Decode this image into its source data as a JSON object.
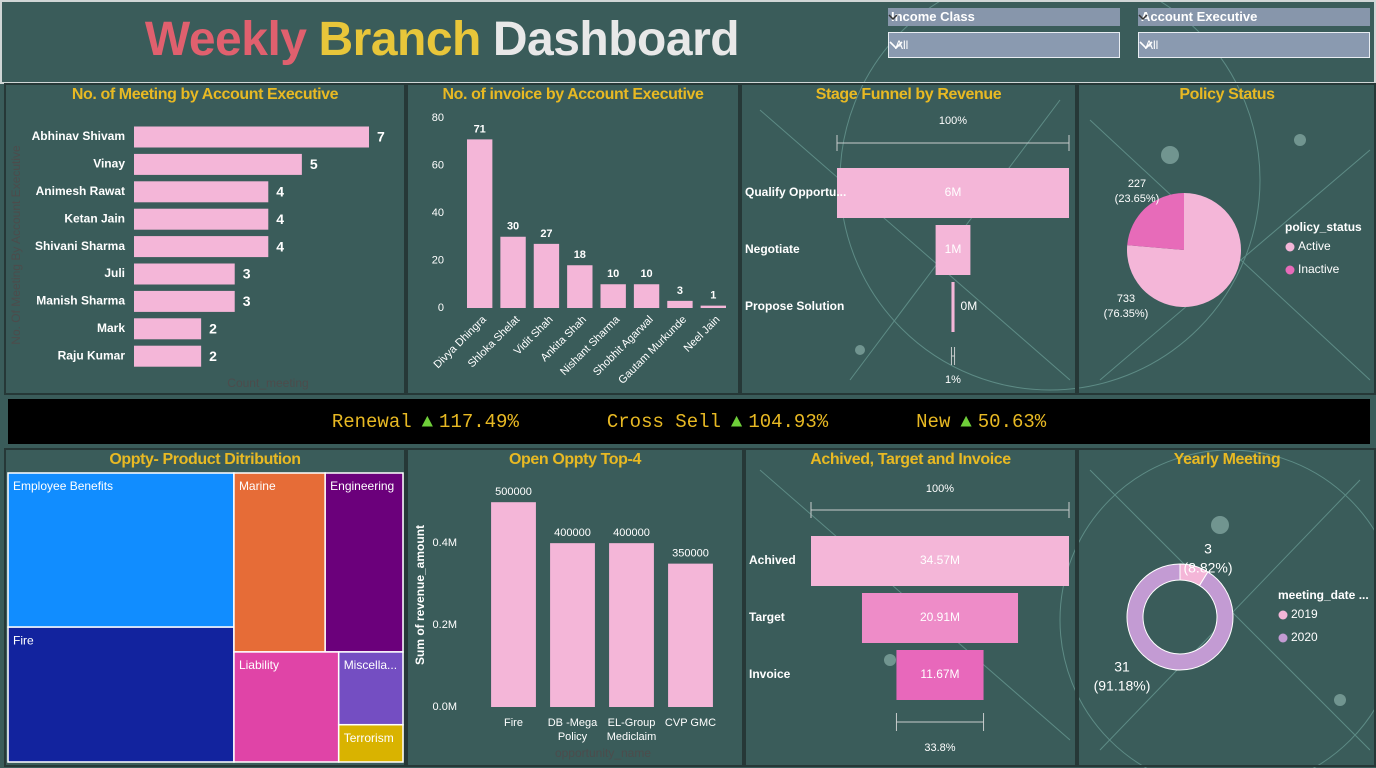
{
  "header": {
    "title_parts": [
      "Weekly",
      "Branch",
      "Dashboard"
    ]
  },
  "slicers": [
    {
      "label": "Income Class",
      "value": "All"
    },
    {
      "label": "Account Executive",
      "value": "All"
    }
  ],
  "ticker": [
    {
      "label": "Renewal",
      "arrow": "▲",
      "change": "117.49%"
    },
    {
      "label": "Cross Sell",
      "arrow": "▲",
      "change": "104.93%"
    },
    {
      "label": "New",
      "arrow": "▲",
      "change": "50.63%"
    }
  ],
  "chart_data": [
    {
      "type": "hbar",
      "title": "No. of Meeting by Account Executive",
      "categories": [
        "Abhinav Shivam",
        "Vinay",
        "Animesh Rawat",
        "Ketan Jain",
        "Shivani Sharma",
        "Juli",
        "Manish Sharma",
        "Mark",
        "Raju Kumar"
      ],
      "values": [
        7,
        5,
        4,
        4,
        4,
        3,
        3,
        2,
        2
      ],
      "color": "#f4b6d8",
      "x_label": "Count_meeting",
      "y_label": "No. Of Meeting By Account Executive"
    },
    {
      "type": "bar",
      "title": "No. of invoice by Account Executive",
      "categories": [
        "Divya Dhingra",
        "Shloka Shelat",
        "Vidit Shah",
        "Ankita Shah",
        "Nishant Sharma",
        "Shobhit Agarwal",
        "Gautam Murkunde",
        "Neel Jain"
      ],
      "values": [
        71,
        30,
        27,
        18,
        10,
        10,
        3,
        1
      ],
      "color": "#f4b6d8",
      "ylim": [
        0,
        80
      ],
      "yticks": [
        0,
        20,
        40,
        60,
        80
      ],
      "grid": false
    },
    {
      "type": "funnel",
      "title": "Stage Funnel by Revenue",
      "categories": [
        "Qualify Opportu...",
        "Negotiate",
        "Propose Solution"
      ],
      "values": [
        6,
        0.9,
        0.08
      ],
      "value_labels": [
        "6M",
        "1M",
        "0M"
      ],
      "colors": [
        "#f4b6d8",
        "#f4b6d8",
        "#f4b6d8"
      ],
      "top_label": "100%",
      "bottom_label": "1%"
    },
    {
      "type": "pie",
      "title": "Policy Status",
      "categories": [
        "Active",
        "Inactive"
      ],
      "values": [
        733,
        227
      ],
      "percent_labels": [
        "(76.35%)",
        "(23.65%)"
      ],
      "colors": [
        "#f4b6d8",
        "#e76bb9"
      ],
      "legend_title": "policy_status"
    },
    {
      "type": "treemap",
      "title": "Oppty- Product Ditribution",
      "categories": [
        "Employee Benefits",
        "Fire",
        "Marine",
        "Engineering",
        "Liability",
        "Miscella...",
        "Terrorism"
      ],
      "values": [
        30.5,
        26.7,
        14.3,
        12.2,
        10.1,
        4.1,
        2.1
      ],
      "colors": [
        "#118dff",
        "#12239e",
        "#e66c37",
        "#6b007b",
        "#e044a7",
        "#744ec2",
        "#d9b300"
      ]
    },
    {
      "type": "bar",
      "title": "Open Oppty Top-4",
      "categories": [
        "Fire",
        "DB -Mega Policy",
        "EL-Group Mediclaim",
        "CVP GMC"
      ],
      "values": [
        500000,
        400000,
        400000,
        350000
      ],
      "color": "#f4b6d8",
      "ylim": [
        0,
        520000
      ],
      "yticks": [
        {
          "value": 0,
          "label": "0.0M"
        },
        {
          "value": 200000,
          "label": "0.2M"
        },
        {
          "value": 400000,
          "label": "0.4M"
        }
      ],
      "x_label": "opportunity_name",
      "y_label": "Sum of revenue_amount",
      "grid": false
    },
    {
      "type": "funnel",
      "title": "Achived, Target and Invoice",
      "categories": [
        "Achived",
        "Target",
        "Invoice"
      ],
      "values": [
        34.57,
        20.91,
        11.67
      ],
      "value_labels": [
        "34.57M",
        "20.91M",
        "11.67M"
      ],
      "colors": [
        "#f4b6d8",
        "#ee8cc8",
        "#e868bb"
      ],
      "top_label": "100%",
      "bottom_label": "33.8%"
    },
    {
      "type": "donut",
      "title": "Yearly Meeting",
      "categories": [
        "2019",
        "2020"
      ],
      "values": [
        3,
        31
      ],
      "percent_labels": [
        "(8.82%)",
        "(91.18%)"
      ],
      "colors": [
        "#f4b6d8",
        "#c39bd3"
      ],
      "legend_title": "meeting_date ..."
    }
  ]
}
